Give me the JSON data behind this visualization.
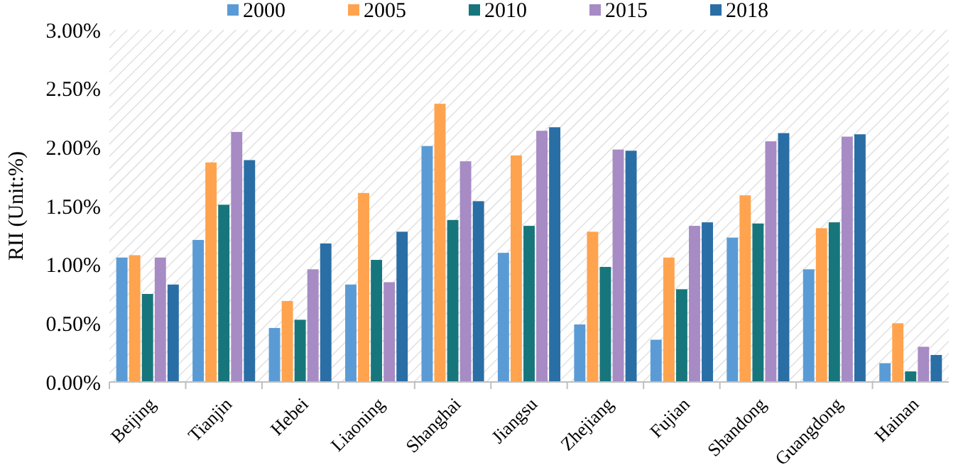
{
  "chart_data": {
    "type": "bar",
    "ylabel": "RII (Unit:%)",
    "categories": [
      "Beijing",
      "Tianjin",
      "Hebei",
      "Liaoning",
      "Shanghai",
      "Jiangsu",
      "Zhejiang",
      "Fujian",
      "Shandong",
      "Guangdong",
      "Hainan"
    ],
    "series": [
      {
        "name": "2000",
        "color": "#5b9bd5",
        "values": [
          1.06,
          1.21,
          0.46,
          0.83,
          2.01,
          1.1,
          0.49,
          0.36,
          1.23,
          0.96,
          0.16
        ]
      },
      {
        "name": "2005",
        "color": "#ffa34f",
        "values": [
          1.08,
          1.87,
          0.69,
          1.61,
          2.37,
          1.93,
          1.28,
          1.06,
          1.59,
          1.31,
          0.5
        ]
      },
      {
        "name": "2010",
        "color": "#17767c",
        "values": [
          0.75,
          1.51,
          0.53,
          1.04,
          1.38,
          1.33,
          0.98,
          0.79,
          1.35,
          1.36,
          0.09
        ]
      },
      {
        "name": "2015",
        "color": "#a78bc4",
        "values": [
          1.06,
          2.13,
          0.96,
          0.85,
          1.88,
          2.14,
          1.98,
          1.33,
          2.05,
          2.09,
          0.3
        ]
      },
      {
        "name": "2018",
        "color": "#2a6ea6",
        "values": [
          0.83,
          1.89,
          1.18,
          1.28,
          1.54,
          2.17,
          1.97,
          1.36,
          2.12,
          2.11,
          0.23
        ]
      }
    ],
    "ylim": [
      0,
      3
    ],
    "yticks": [
      {
        "value": 0,
        "label": "0.00%"
      },
      {
        "value": 0.5,
        "label": "0.50%"
      },
      {
        "value": 1,
        "label": "1.00%"
      },
      {
        "value": 1.5,
        "label": "1.50%"
      },
      {
        "value": 2,
        "label": "2.00%"
      },
      {
        "value": 2.5,
        "label": "2.50%"
      },
      {
        "value": 3,
        "label": "3.00%"
      }
    ],
    "grid": false,
    "legend": "top"
  }
}
